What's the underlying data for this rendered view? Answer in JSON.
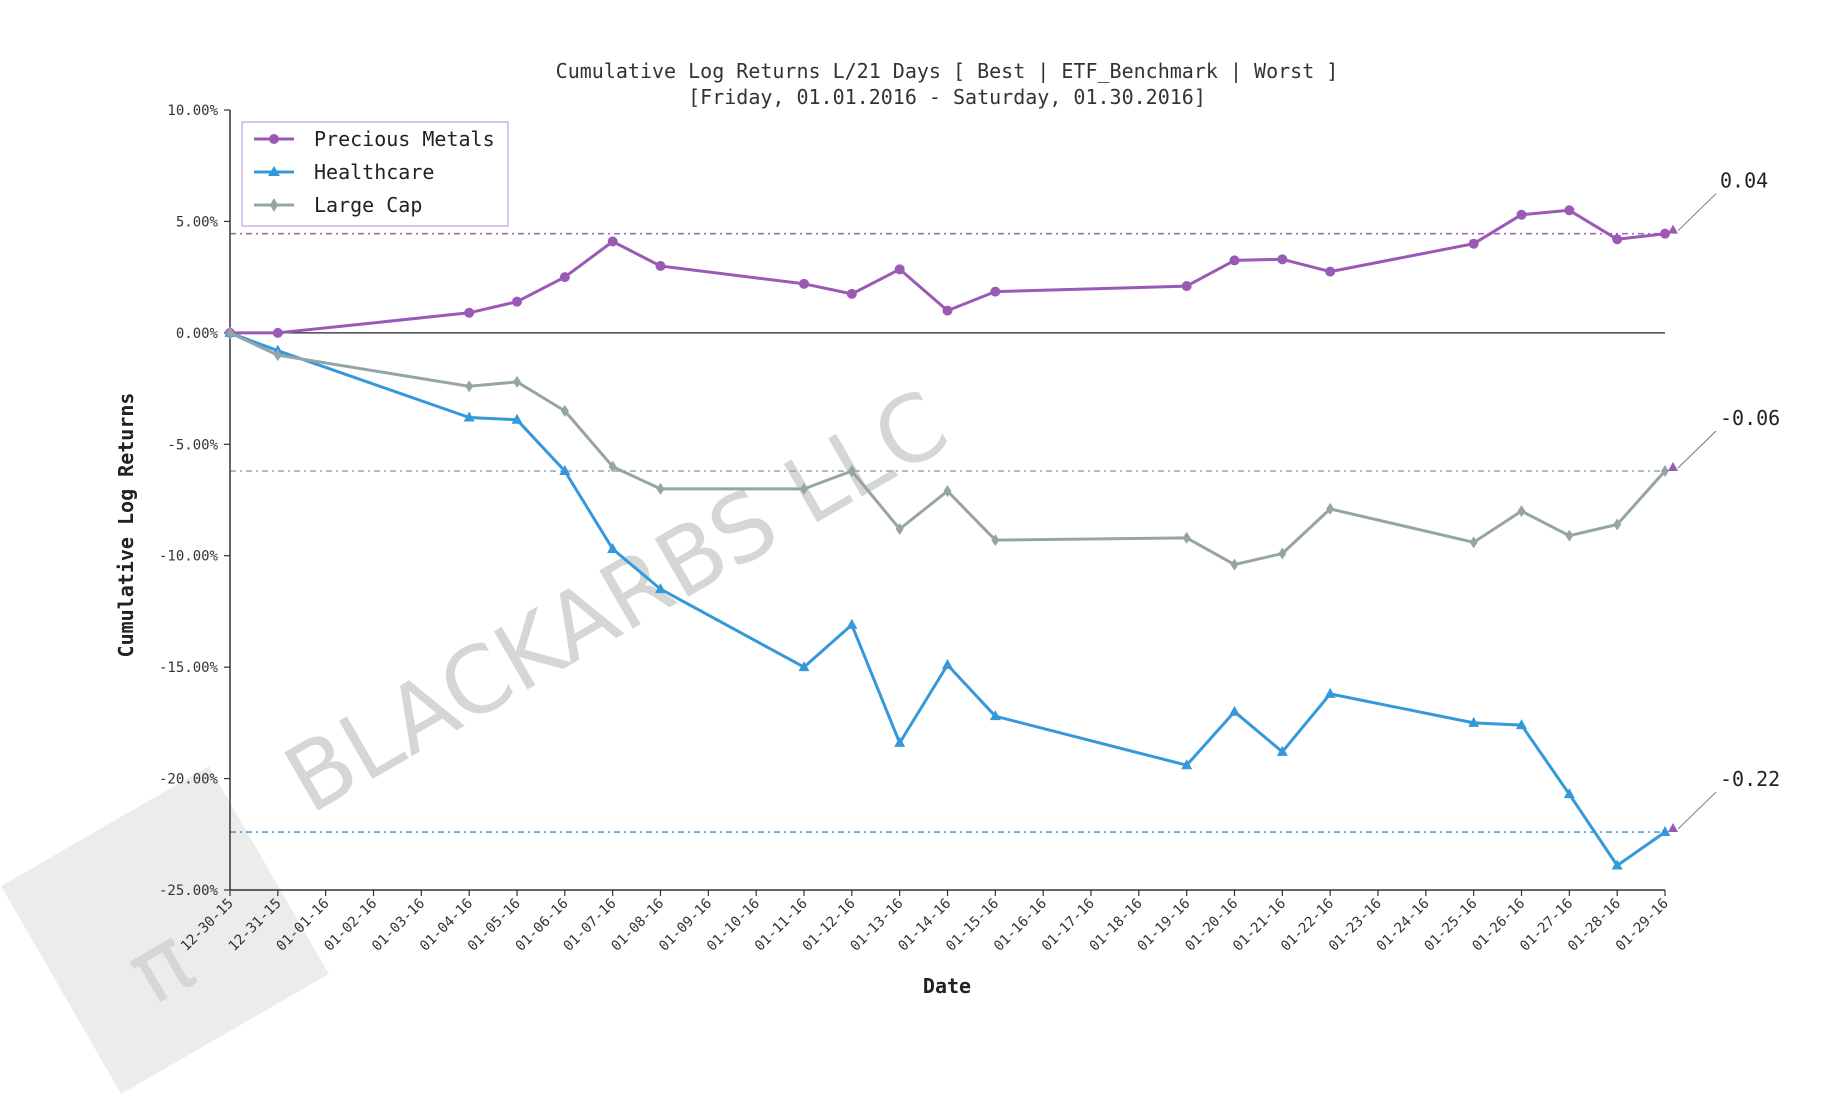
{
  "watermark": {
    "text": "BLACKARBS LLC",
    "logo_glyph": "π"
  },
  "chart_data": {
    "type": "line",
    "title": "Cumulative Log Returns L/21 Days [ Best | ETF_Benchmark | Worst ]",
    "subtitle": "[Friday, 01.01.2016 - Saturday, 01.30.2016]",
    "xlabel": "Date",
    "ylabel": "Cumulative Log Returns",
    "categories": [
      "12-30-15",
      "12-31-15",
      "01-01-16",
      "01-02-16",
      "01-03-16",
      "01-04-16",
      "01-05-16",
      "01-06-16",
      "01-07-16",
      "01-08-16",
      "01-09-16",
      "01-10-16",
      "01-11-16",
      "01-12-16",
      "01-13-16",
      "01-14-16",
      "01-15-16",
      "01-16-16",
      "01-17-16",
      "01-18-16",
      "01-19-16",
      "01-20-16",
      "01-21-16",
      "01-22-16",
      "01-23-16",
      "01-24-16",
      "01-25-16",
      "01-26-16",
      "01-27-16",
      "01-28-16",
      "01-29-16"
    ],
    "ylim": [
      -25,
      10
    ],
    "yticks": [
      10,
      5,
      0,
      -5,
      -10,
      -15,
      -20,
      -25
    ],
    "ytick_labels": [
      "10.00%",
      "5.00%",
      "0.00%",
      "-5.00%",
      "-10.00%",
      "-15.00%",
      "-20.00%",
      "-25.00%"
    ],
    "legend_position": "top-left",
    "zero_line": true,
    "series": [
      {
        "name": "Precious Metals",
        "color": "#9b59b6",
        "marker": "circle",
        "x": [
          0,
          1,
          5,
          6,
          7,
          8,
          9,
          12,
          13,
          14,
          15,
          16,
          20,
          21,
          22,
          23,
          26,
          27,
          28,
          29,
          30
        ],
        "values": [
          0.0,
          0.0,
          0.9,
          1.4,
          2.5,
          4.1,
          3.0,
          2.2,
          1.75,
          2.85,
          1.0,
          1.85,
          2.1,
          3.25,
          3.3,
          2.75,
          4.0,
          5.3,
          5.5,
          4.2,
          4.45
        ],
        "final_label": "0.04",
        "final_value": 4.45
      },
      {
        "name": "Healthcare",
        "color": "#3498db",
        "marker": "triangle",
        "x": [
          0,
          1,
          5,
          6,
          7,
          8,
          9,
          12,
          13,
          14,
          15,
          16,
          20,
          21,
          22,
          23,
          26,
          27,
          28,
          29,
          30
        ],
        "values": [
          0.0,
          -0.8,
          -3.8,
          -3.9,
          -6.2,
          -9.7,
          -11.5,
          -15.0,
          -13.1,
          -18.4,
          -14.9,
          -17.2,
          -19.4,
          -17.0,
          -18.8,
          -16.2,
          -17.5,
          -17.6,
          -20.7,
          -23.9,
          -22.4
        ],
        "final_label": "-0.22",
        "final_value": -22.4
      },
      {
        "name": "Large Cap",
        "color": "#95a5a6",
        "marker": "diamond",
        "x": [
          0,
          1,
          5,
          6,
          7,
          8,
          9,
          12,
          13,
          14,
          15,
          16,
          20,
          21,
          22,
          23,
          26,
          27,
          28,
          29,
          30
        ],
        "values": [
          0.0,
          -1.0,
          -2.4,
          -2.2,
          -3.5,
          -6.0,
          -7.0,
          -7.0,
          -6.2,
          -8.8,
          -7.1,
          -9.3,
          -9.2,
          -10.4,
          -9.9,
          -7.9,
          -9.4,
          -8.0,
          -9.1,
          -8.6,
          -6.2
        ],
        "final_label": "-0.06",
        "final_value": -6.2
      }
    ]
  }
}
